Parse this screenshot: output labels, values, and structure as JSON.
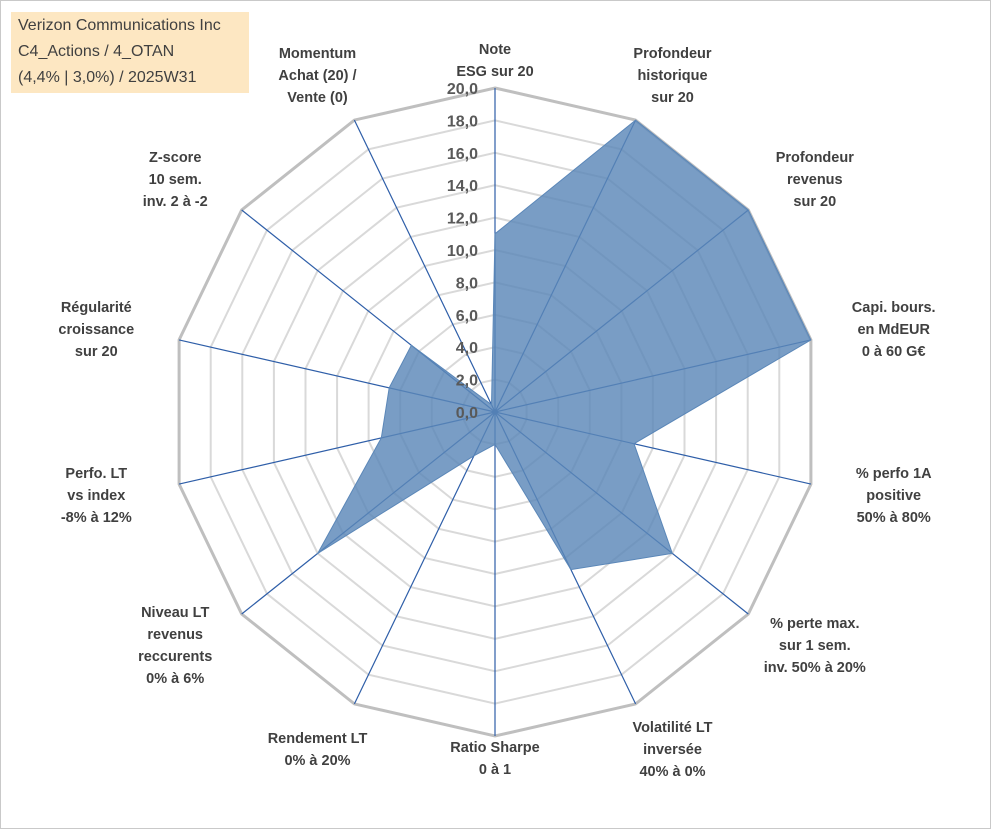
{
  "title_box": {
    "lines": [
      "Verizon Communications Inc",
      "C4_Actions / 4_OTAN",
      "(4,4% | 3,0%) / 2025W31"
    ]
  },
  "colors": {
    "fill": "#5b87b8",
    "spoke": "#2e5ea8",
    "grid_outer": "#bfbfbf",
    "grid_inner": "#d9d9d9",
    "title_bg": "#fde7c2"
  },
  "chart_data": {
    "type": "radar",
    "scale": {
      "min": 0,
      "max": 20,
      "step": 2
    },
    "tick_labels": [
      "0,0",
      "2,0",
      "4,0",
      "6,0",
      "8,0",
      "10,0",
      "12,0",
      "14,0",
      "16,0",
      "18,0",
      "20,0"
    ],
    "axes": [
      {
        "label": [
          "Note",
          "ESG sur 20"
        ],
        "value": 11.0
      },
      {
        "label": [
          "Profondeur",
          "historique",
          "sur 20"
        ],
        "value": 20.0
      },
      {
        "label": [
          "Profondeur",
          "revenus",
          "sur 20"
        ],
        "value": 20.0
      },
      {
        "label": [
          "Capi. bours.",
          "en MdEUR",
          "0 à 60 G€"
        ],
        "value": 20.0
      },
      {
        "label": [
          "% perfo 1A",
          "positive",
          "50% à 80%"
        ],
        "value": 8.8
      },
      {
        "label": [
          "% perte max.",
          "sur 1 sem.",
          "inv. 50% à 20%"
        ],
        "value": 14.0
      },
      {
        "label": [
          "Volatilité LT",
          "inversée",
          "40% à 0%"
        ],
        "value": 10.8
      },
      {
        "label": [
          "Ratio Sharpe",
          "0 à 1"
        ],
        "value": 2.0
      },
      {
        "label": [
          "Rendement LT",
          "0% à 20%"
        ],
        "value": 3.0
      },
      {
        "label": [
          "Niveau LT",
          "revenus",
          "reccurents",
          "0% à 6%"
        ],
        "value": 14.0
      },
      {
        "label": [
          "Perfo. LT",
          "vs index",
          "-8% à 12%"
        ],
        "value": 7.2
      },
      {
        "label": [
          "Régularité",
          "croissance",
          "sur 20"
        ],
        "value": 6.7
      },
      {
        "label": [
          "Z-score",
          "10 sem.",
          "inv. 2 à -2"
        ],
        "value": 6.6
      },
      {
        "label": [
          "Momentum",
          "Achat (20) /",
          "Vente (0)"
        ],
        "value": 0.5
      }
    ]
  }
}
